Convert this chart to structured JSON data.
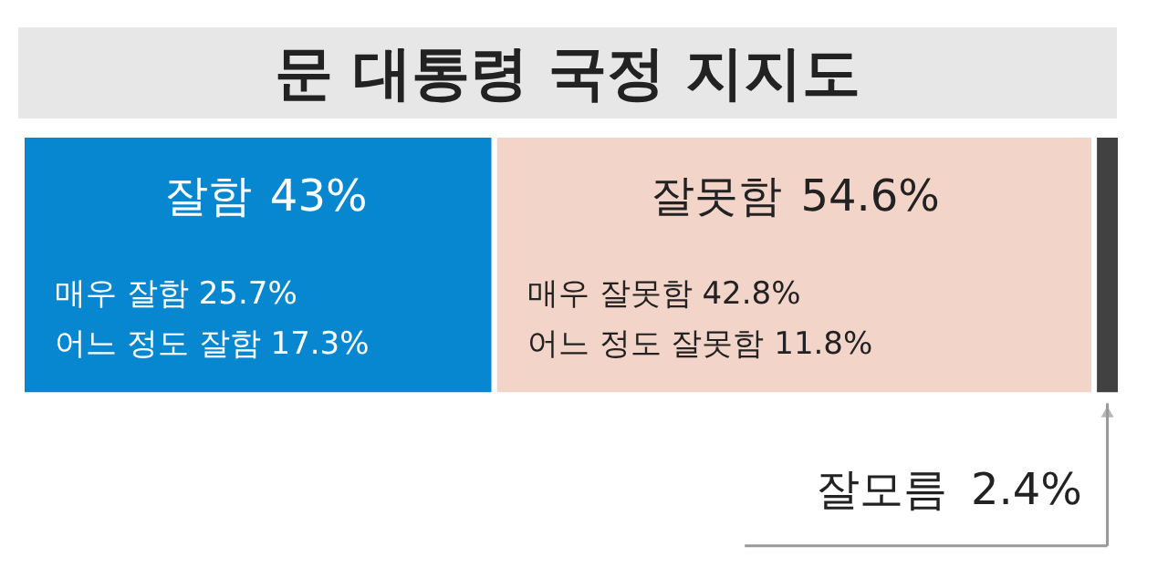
{
  "chart_data": {
    "type": "bar",
    "title": "문 대통령 국정 지지도",
    "orientation": "horizontal",
    "stacked": true,
    "categories": [
      null
    ],
    "tick_labels": false,
    "series": [
      {
        "name": "잘함",
        "color": "#0787d0",
        "values": [
          43
        ],
        "value_labels": [
          "43%"
        ]
      },
      {
        "name": "잘못함",
        "color": "#f2d4c9",
        "values": [
          54.6
        ],
        "value_labels": [
          "54.6%"
        ]
      },
      {
        "name": "잘모름",
        "color": "#414141",
        "values": [
          2.4
        ],
        "value_labels": [
          "2.4%"
        ]
      }
    ],
    "annotations": [
      "매우 잘함 25.7%",
      "어느 정도 잘함 17.3%",
      "매우 잘못함 42.8%",
      "어느 정도 잘못함 11.8%"
    ]
  }
}
